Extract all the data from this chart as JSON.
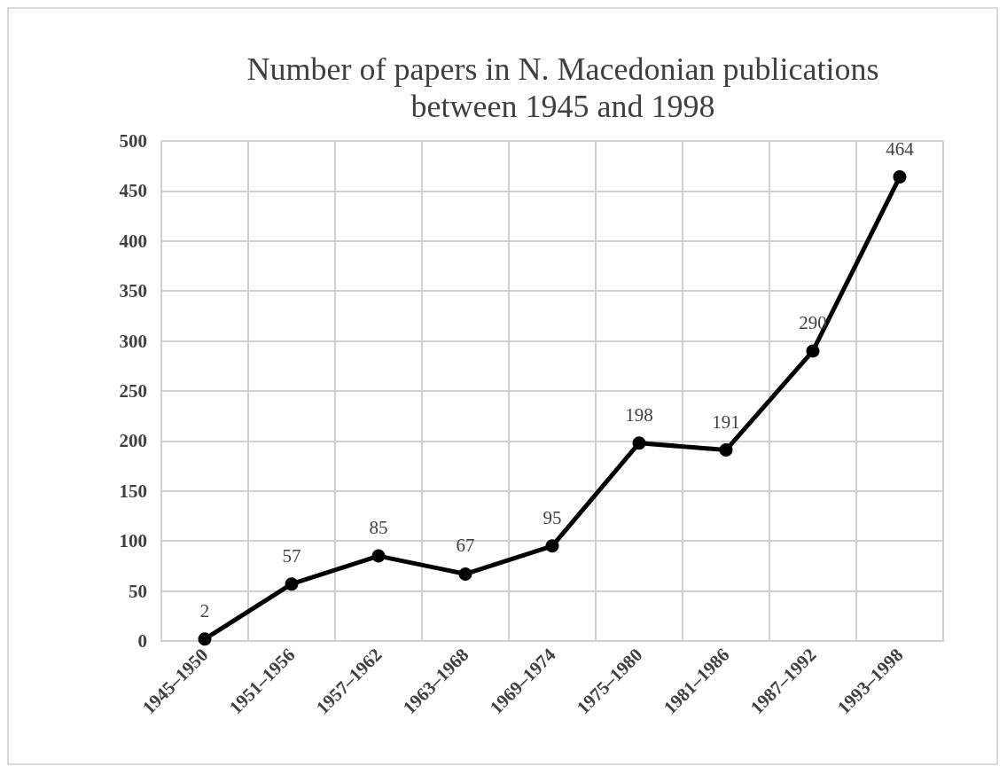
{
  "chart_data": {
    "type": "line",
    "title": "Number of papers in N. Macedonian publications\nbetween 1945 and 1998",
    "categories": [
      "1945–1950",
      "1951–1956",
      "1957–1962",
      "1963–1968",
      "1969–1974",
      "1975–1980",
      "1981–1986",
      "1987–1992",
      "1993–1998"
    ],
    "series": [
      {
        "color": "#000000",
        "values": [
          2,
          57,
          85,
          67,
          95,
          198,
          191,
          290,
          464
        ]
      }
    ],
    "ylim": [
      0,
      500
    ],
    "yticks": [
      0,
      50,
      100,
      150,
      200,
      250,
      300,
      350,
      400,
      450,
      500
    ],
    "grid": true,
    "marker": "circle",
    "line_style": "solid",
    "data_labels": true
  }
}
